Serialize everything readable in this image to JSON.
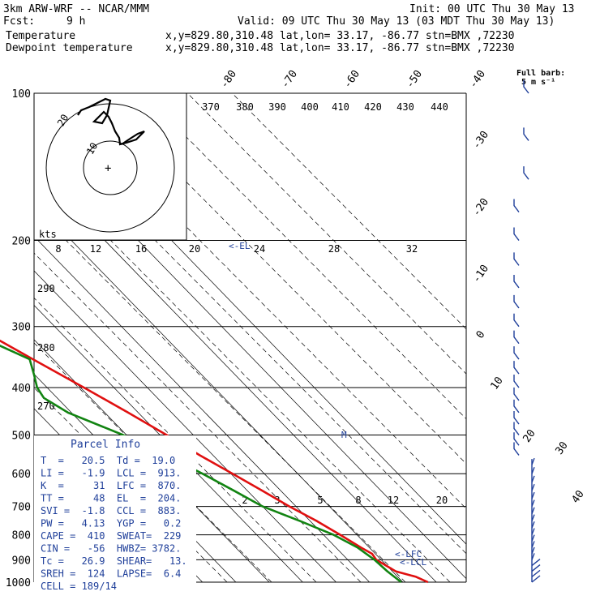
{
  "header": {
    "model": "3km ARW-WRF -- NCAR/MMM",
    "init": "Init: 00 UTC Thu 30 May 13",
    "fcst_label": "Fcst:",
    "fcst_value": "9 h",
    "valid": "Valid: 09 UTC Thu 30 May 13 (03 MDT Thu 30 May 13)",
    "temp_label": "Temperature",
    "dew_label": "Dewpoint temperature",
    "temp_loc": "x,y=829.80,310.48   lat,lon= 33.17, -86.77   stn=BMX ,72230",
    "dew_loc": "x,y=829.80,310.48   lat,lon= 33.17, -86.77   stn=BMX ,72230"
  },
  "colors": {
    "temperature": "#e01010",
    "dewpoint": "#128412",
    "info": "#1f3f9a",
    "wind": "#1f3f9a"
  },
  "wind_key": {
    "line1": "Full barb:",
    "line2": "5 m s⁻¹"
  },
  "hodograph": {
    "units": "kts",
    "ring_labels": [
      "10",
      "20"
    ],
    "center_symbol": "+"
  },
  "markers": {
    "el": "<-EL",
    "lfc": "<-LFC",
    "lcl": "<-LCL",
    "m": "M"
  },
  "parcel_info": {
    "title": "Parcel Info",
    "rows": [
      "T  =   20.5  Td =  19.0",
      "LI =   -1.9  LCL =  913.",
      "K  =     31  LFC =  870.",
      "TT =     48  EL  =  204.",
      "SVI =  -1.8  CCL =  883.",
      "PW =   4.13  YGP =   0.2",
      "CAPE =  410  SWEAT=  229",
      "CIN =   -56  HWBZ= 3782.",
      "Tc =   26.9  SHEAR=   13.",
      "SREH =  124  LAPSE=  6.4",
      "CELL = 189/14"
    ]
  },
  "chart_data": {
    "type": "line",
    "title": "",
    "y_axis": "pressure (hPa, log scale)",
    "pressure_ticks": [
      100,
      200,
      300,
      400,
      500,
      600,
      700,
      800,
      900,
      1000
    ],
    "isotherm_labels_top": [
      "-80",
      "-70",
      "-60",
      "-50",
      "-40"
    ],
    "isotherm_labels_right": [
      "-30",
      "-20",
      "-10",
      "0",
      "10",
      "20",
      "30",
      "40"
    ],
    "theta_e_labels": [
      "370",
      "380",
      "390",
      "400",
      "410",
      "420",
      "430",
      "440"
    ],
    "mixing_ratio_labels_upper": [
      "8",
      "12",
      "16",
      "20",
      "24",
      "28",
      "32"
    ],
    "theta_labels_left": [
      "290",
      "280",
      "270"
    ],
    "mixing_ratio_labels_lower": [
      "2",
      "3",
      "5",
      "8",
      "12",
      "20"
    ],
    "series": [
      {
        "name": "Temperature",
        "points": [
          [
            1000,
            27.5
          ],
          [
            975,
            25.5
          ],
          [
            950,
            21
          ],
          [
            925,
            19.8
          ],
          [
            900,
            18.5
          ],
          [
            875,
            19
          ],
          [
            850,
            17.5
          ],
          [
            800,
            15
          ],
          [
            750,
            12
          ],
          [
            700,
            8
          ],
          [
            650,
            4.5
          ],
          [
            600,
            0.5
          ],
          [
            550,
            -4
          ],
          [
            500,
            -8
          ],
          [
            450,
            -13
          ],
          [
            400,
            -19
          ],
          [
            350,
            -26
          ],
          [
            300,
            -34
          ],
          [
            250,
            -43
          ],
          [
            225,
            -48
          ],
          [
            200,
            -54
          ],
          [
            190,
            -56
          ],
          [
            175,
            -55
          ],
          [
            160,
            -53
          ],
          [
            150,
            -53
          ],
          [
            140,
            -52.5
          ],
          [
            130,
            -53
          ],
          [
            120,
            -56
          ],
          [
            100,
            -58
          ]
        ]
      },
      {
        "name": "Dewpoint temperature",
        "points": [
          [
            1000,
            19.5
          ],
          [
            950,
            18.5
          ],
          [
            900,
            18
          ],
          [
            850,
            16.5
          ],
          [
            800,
            13
          ],
          [
            750,
            7
          ],
          [
            700,
            0
          ],
          [
            650,
            -4
          ],
          [
            600,
            -8.5
          ],
          [
            550,
            -14
          ],
          [
            500,
            -21
          ],
          [
            450,
            -31
          ],
          [
            420,
            -34
          ],
          [
            400,
            -33
          ],
          [
            375,
            -30
          ],
          [
            350,
            -27
          ],
          [
            320,
            -34
          ],
          [
            300,
            -40
          ],
          [
            270,
            -52
          ],
          [
            250,
            -56
          ],
          [
            220,
            -59
          ],
          [
            200,
            -60
          ],
          [
            180,
            -62
          ],
          [
            160,
            -63
          ],
          [
            150,
            -62
          ],
          [
            140,
            -61
          ],
          [
            130,
            -61
          ],
          [
            120,
            -61.5
          ],
          [
            110,
            -64
          ],
          [
            100,
            -66
          ]
        ]
      }
    ]
  }
}
